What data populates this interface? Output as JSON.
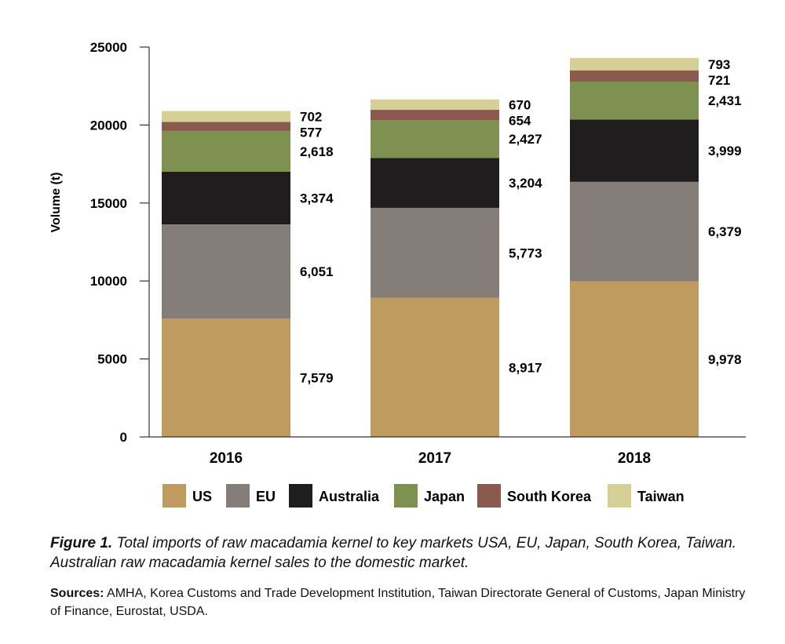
{
  "chart_data": {
    "type": "bar",
    "stacked": true,
    "ylabel": "Volume (t)",
    "xlabel": "",
    "ylim": [
      0,
      25000
    ],
    "yticks": [
      0,
      5000,
      10000,
      15000,
      20000,
      25000
    ],
    "categories": [
      "2016",
      "2017",
      "2018"
    ],
    "series": [
      {
        "name": "US",
        "values": [
          7579,
          8917,
          9978
        ],
        "labels": [
          "7,579",
          "8,917",
          "9,978"
        ],
        "color": "#bf9b5f"
      },
      {
        "name": "EU",
        "values": [
          6051,
          5773,
          6379
        ],
        "labels": [
          "6,051",
          "5,773",
          "6,379"
        ],
        "color": "#857d78"
      },
      {
        "name": "Australia",
        "values": [
          3374,
          3204,
          3999
        ],
        "labels": [
          "3,374",
          "3,204",
          "3,999"
        ],
        "color": "#1f1d1d"
      },
      {
        "name": "Japan",
        "values": [
          2618,
          2427,
          2431
        ],
        "labels": [
          "2,618",
          "2,427",
          "2,431"
        ],
        "color": "#7f9150"
      },
      {
        "name": "South Korea",
        "values": [
          577,
          654,
          721
        ],
        "labels": [
          "577",
          "654",
          "721"
        ],
        "color": "#8a5a4e"
      },
      {
        "name": "Taiwan",
        "values": [
          702,
          670,
          793
        ],
        "labels": [
          "702",
          "670",
          "793"
        ],
        "color": "#d6d097"
      }
    ],
    "legend_position": "bottom",
    "grid": false
  },
  "caption": {
    "figure_ref": "Figure 1.",
    "text": " Total imports of raw macadamia kernel to key markets USA, EU, Japan, South Korea, Taiwan. Australian raw macadamia kernel sales to the domestic market."
  },
  "sources": {
    "heading": "Sources:",
    "text": " AMHA, Korea Customs and Trade Development Institution, Taiwan Directorate General of Customs, Japan Ministry of Finance, Eurostat, USDA."
  }
}
